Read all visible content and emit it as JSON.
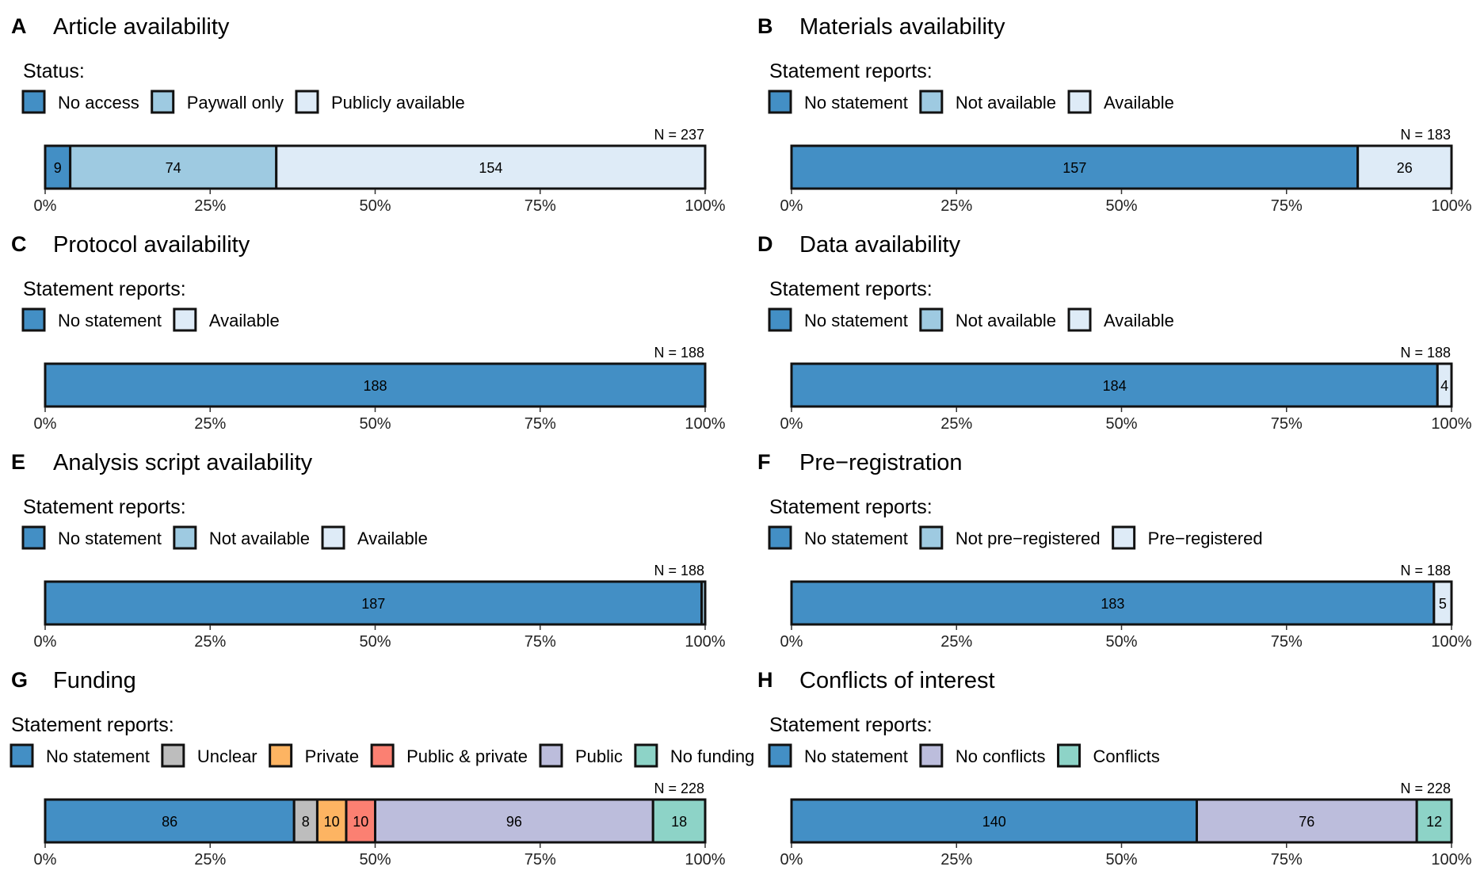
{
  "colors": {
    "no_statement": "#438fc5",
    "paywall_or_not": "#9ecae1",
    "available": "#deebf7",
    "unclear": "#bdbdbd",
    "private": "#fdb462",
    "public_private": "#fb8072",
    "public": "#bcbddc",
    "no_funding": "#8dd3c7",
    "outline": "#111111"
  },
  "chart_data": [
    {
      "type": "bar",
      "letter": "A",
      "title": "Article availability",
      "legend_title": "Status:",
      "n_label": "N = 237",
      "xlim": [
        0,
        100
      ],
      "ticks": [
        "0%",
        "25%",
        "50%",
        "75%",
        "100%"
      ],
      "series": [
        {
          "name": "No access",
          "value": 9,
          "color": "#438fc5"
        },
        {
          "name": "Paywall only",
          "value": 74,
          "color": "#9ecae1"
        },
        {
          "name": "Publicly available",
          "value": 154,
          "color": "#deebf7"
        }
      ]
    },
    {
      "type": "bar",
      "letter": "B",
      "title": "Materials availability",
      "legend_title": "Statement reports:",
      "n_label": "N = 183",
      "xlim": [
        0,
        100
      ],
      "ticks": [
        "0%",
        "25%",
        "50%",
        "75%",
        "100%"
      ],
      "series": [
        {
          "name": "No statement",
          "value": 157,
          "color": "#438fc5"
        },
        {
          "name": "Not available",
          "value": 0,
          "color": "#9ecae1"
        },
        {
          "name": "Available",
          "value": 26,
          "color": "#deebf7"
        }
      ]
    },
    {
      "type": "bar",
      "letter": "C",
      "title": "Protocol availability",
      "legend_title": "Statement reports:",
      "n_label": "N = 188",
      "xlim": [
        0,
        100
      ],
      "ticks": [
        "0%",
        "25%",
        "50%",
        "75%",
        "100%"
      ],
      "series": [
        {
          "name": "No statement",
          "value": 188,
          "color": "#438fc5"
        },
        {
          "name": "Available",
          "value": 0,
          "color": "#deebf7"
        }
      ]
    },
    {
      "type": "bar",
      "letter": "D",
      "title": "Data availability",
      "legend_title": "Statement reports:",
      "n_label": "N = 188",
      "xlim": [
        0,
        100
      ],
      "ticks": [
        "0%",
        "25%",
        "50%",
        "75%",
        "100%"
      ],
      "series": [
        {
          "name": "No statement",
          "value": 184,
          "color": "#438fc5"
        },
        {
          "name": "Not available",
          "value": 0,
          "color": "#9ecae1"
        },
        {
          "name": "Available",
          "value": 4,
          "color": "#deebf7"
        }
      ]
    },
    {
      "type": "bar",
      "letter": "E",
      "title": "Analysis script availability",
      "legend_title": "Statement reports:",
      "n_label": "N = 188",
      "xlim": [
        0,
        100
      ],
      "ticks": [
        "0%",
        "25%",
        "50%",
        "75%",
        "100%"
      ],
      "series": [
        {
          "name": "No statement",
          "value": 187,
          "color": "#438fc5"
        },
        {
          "name": "Not available",
          "value": 1,
          "color": "#9ecae1"
        },
        {
          "name": "Available",
          "value": 0,
          "color": "#deebf7"
        }
      ]
    },
    {
      "type": "bar",
      "letter": "F",
      "title": "Pre−registration",
      "legend_title": "Statement reports:",
      "n_label": "N = 188",
      "xlim": [
        0,
        100
      ],
      "ticks": [
        "0%",
        "25%",
        "50%",
        "75%",
        "100%"
      ],
      "series": [
        {
          "name": "No statement",
          "value": 183,
          "color": "#438fc5"
        },
        {
          "name": "Not pre−registered",
          "value": 0,
          "color": "#9ecae1"
        },
        {
          "name": "Pre−registered",
          "value": 5,
          "color": "#deebf7"
        }
      ]
    },
    {
      "type": "bar",
      "letter": "G",
      "title": "Funding",
      "legend_title": "Statement reports:",
      "n_label": "N = 228",
      "xlim": [
        0,
        100
      ],
      "ticks": [
        "0%",
        "25%",
        "50%",
        "75%",
        "100%"
      ],
      "series": [
        {
          "name": "No statement",
          "value": 86,
          "color": "#438fc5"
        },
        {
          "name": "Unclear",
          "value": 8,
          "color": "#bdbdbd"
        },
        {
          "name": "Private",
          "value": 10,
          "color": "#fdb462"
        },
        {
          "name": "Public & private",
          "value": 10,
          "color": "#fb8072"
        },
        {
          "name": "Public",
          "value": 96,
          "color": "#bcbddc"
        },
        {
          "name": "No funding",
          "value": 18,
          "color": "#8dd3c7"
        }
      ]
    },
    {
      "type": "bar",
      "letter": "H",
      "title": "Conflicts of interest",
      "legend_title": "Statement reports:",
      "n_label": "N = 228",
      "xlim": [
        0,
        100
      ],
      "ticks": [
        "0%",
        "25%",
        "50%",
        "75%",
        "100%"
      ],
      "series": [
        {
          "name": "No statement",
          "value": 140,
          "color": "#438fc5"
        },
        {
          "name": "No conflicts",
          "value": 76,
          "color": "#bcbddc"
        },
        {
          "name": "Conflicts",
          "value": 12,
          "color": "#8dd3c7"
        }
      ]
    }
  ]
}
